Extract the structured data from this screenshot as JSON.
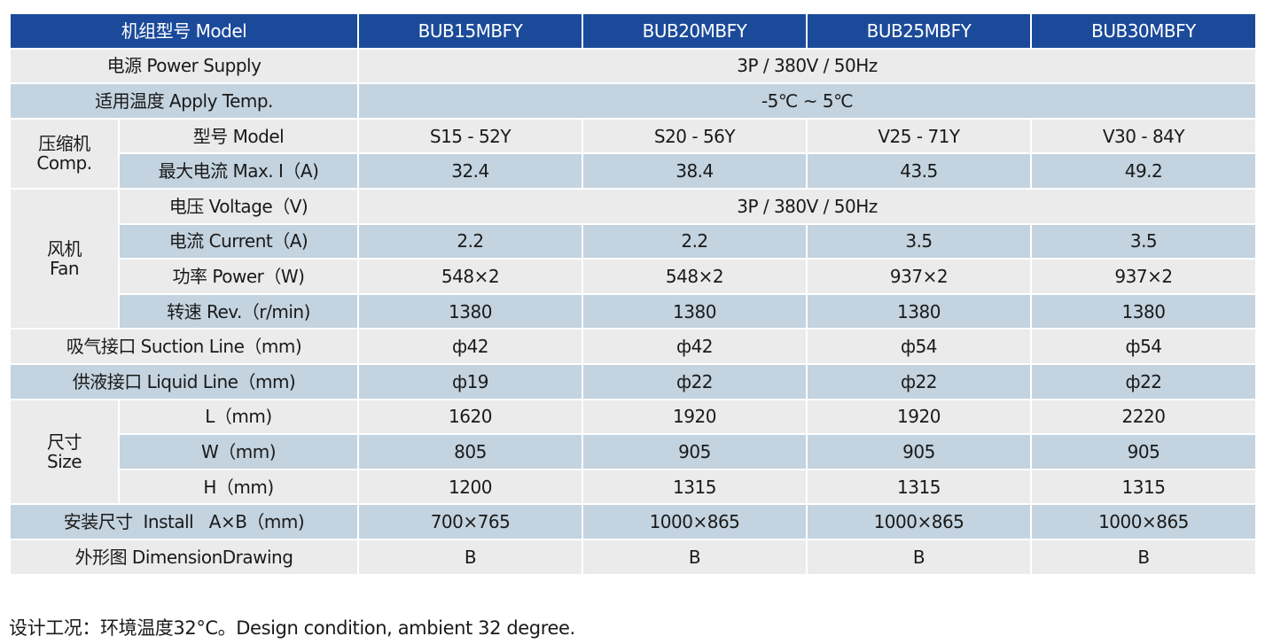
{
  "header": {
    "label": "机组型号 Model",
    "models": [
      "BUB15MBFY",
      "BUB20MBFY",
      "BUB25MBFY",
      "BUB30MBFY"
    ]
  },
  "power_supply": {
    "label": "电源 Power Supply",
    "value": "3P / 380V / 50Hz"
  },
  "apply_temp": {
    "label": "适用温度 Apply Temp.",
    "value": "-5℃ ~ 5℃"
  },
  "compressor": {
    "group_cn": "压缩机",
    "group_en": "Comp.",
    "model_label": "型号 Model",
    "models": [
      "S15 - 52Y",
      "S20 - 56Y",
      "V25 - 71Y",
      "V30 - 84Y"
    ],
    "current_label": "最大电流 Max. I（A)",
    "currents": [
      "32.4",
      "38.4",
      "43.5",
      "49.2"
    ]
  },
  "fan": {
    "group_cn": "风机",
    "group_en": "Fan",
    "voltage_label": "电压 Voltage（V)",
    "voltage_value": "3P / 380V / 50Hz",
    "current_label": "电流 Current（A)",
    "currents": [
      "2.2",
      "2.2",
      "3.5",
      "3.5"
    ],
    "power_label": "功率 Power（W)",
    "powers": [
      "548×2",
      "548×2",
      "937×2",
      "937×2"
    ],
    "rev_label": "转速 Rev.（r/min)",
    "revs": [
      "1380",
      "1380",
      "1380",
      "1380"
    ]
  },
  "suction": {
    "label": "吸气接口 Suction Line（mm)",
    "values": [
      "ф42",
      "ф42",
      "ф54",
      "ф54"
    ]
  },
  "liquid": {
    "label": "供液接口 Liquid Line（mm)",
    "values": [
      "ф19",
      "ф22",
      "ф22",
      "ф22"
    ]
  },
  "size": {
    "group_cn": "尺寸",
    "group_en": "Size",
    "l_label": "L（mm)",
    "l_values": [
      "1620",
      "1920",
      "1920",
      "2220"
    ],
    "w_label": "W（mm)",
    "w_values": [
      "805",
      "905",
      "905",
      "905"
    ],
    "h_label": "H（mm)",
    "h_values": [
      "1200",
      "1315",
      "1315",
      "1315"
    ]
  },
  "install": {
    "label": "安装尺寸  Install   A×B（mm)",
    "values": [
      "700×765",
      "1000×865",
      "1000×865",
      "1000×865"
    ]
  },
  "drawing": {
    "label": "外形图 DimensionDrawing",
    "values": [
      "B",
      "B",
      "B",
      "B"
    ]
  },
  "footnote": "设计工况：环境温度32°C。Design condition, ambient 32 degree.",
  "colors": {
    "header_bg": "#1b4a9a",
    "row_light": "#ebebeb",
    "row_blue": "#c3d3df"
  }
}
